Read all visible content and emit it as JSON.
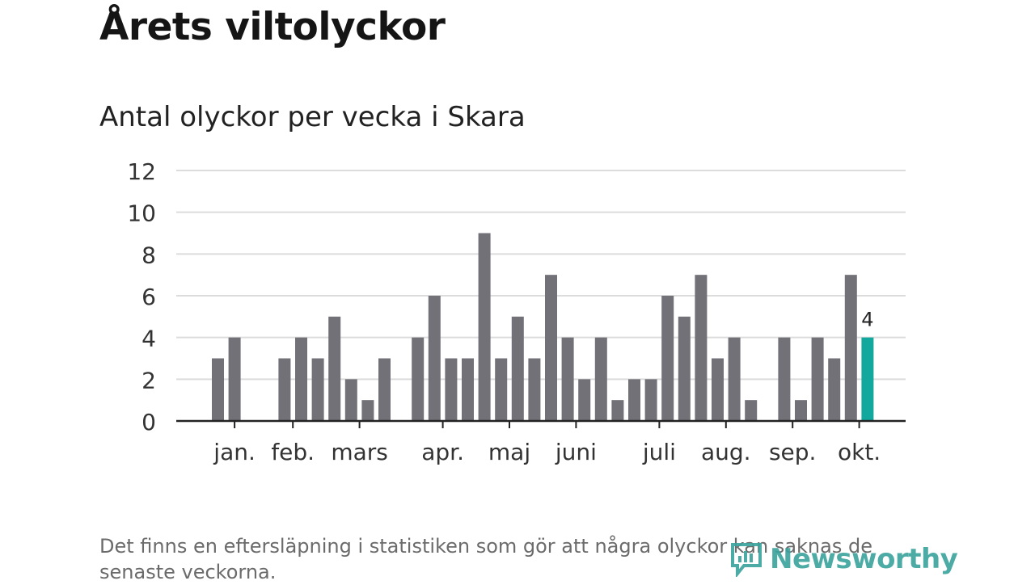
{
  "header": {
    "title": "Årets viltolyckor",
    "subtitle": "Antal olyckor per vecka i Skara"
  },
  "footer": {
    "note": "Det finns en eftersläpning i statistiken som gör att några olyckor kan saknas de senaste veckorna.",
    "logo_text": "Newsworthy"
  },
  "colors": {
    "bar": "#727178",
    "highlight": "#13a89e",
    "grid": "#dcdcdc",
    "axis": "#222222",
    "logo": "#3aa39d"
  },
  "chart_data": {
    "type": "bar",
    "title": "Antal olyckor per vecka i Skara",
    "xlabel": "",
    "ylabel": "",
    "ylim": [
      0,
      12
    ],
    "yticks": [
      0,
      2,
      4,
      6,
      8,
      10,
      12
    ],
    "grid": true,
    "week_values": [
      3,
      4,
      null,
      null,
      3,
      4,
      3,
      5,
      2,
      1,
      3,
      null,
      4,
      6,
      3,
      3,
      9,
      3,
      5,
      3,
      7,
      4,
      2,
      4,
      1,
      2,
      2,
      6,
      5,
      7,
      3,
      4,
      1,
      null,
      4,
      1,
      4,
      3,
      7,
      4
    ],
    "highlight_index": 39,
    "highlight_label": "4",
    "month_labels": [
      "jan.",
      "feb.",
      "mars",
      "apr.",
      "maj",
      "juni",
      "juli",
      "aug.",
      "sep.",
      "okt."
    ],
    "month_tick_positions": [
      1,
      4.5,
      8.5,
      13.5,
      17.5,
      21.5,
      26.5,
      30.5,
      34.5,
      38.5
    ]
  }
}
